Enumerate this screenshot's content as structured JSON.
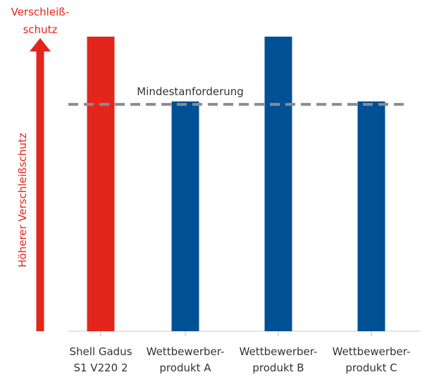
{
  "chart_data": {
    "type": "bar",
    "title": "",
    "xlabel": "",
    "ylabel": "Höherer Verschleißschutz",
    "y_axis_top_label": [
      "Verschleiß-",
      "schutz"
    ],
    "categories": [
      [
        "Shell Gadus",
        "S1 V220 2"
      ],
      [
        "Wettbewerber-",
        "produkt A"
      ],
      [
        "Wettbewerber-",
        "produkt B"
      ],
      [
        "Wettbewerber-",
        "produkt C"
      ]
    ],
    "values": [
      100,
      78,
      100,
      78
    ],
    "ylim": [
      0,
      100
    ],
    "reference_line": {
      "label": "Mindestanforderung",
      "value": 77,
      "style": "dashed",
      "color": "#8c8c8c"
    },
    "bar_colors": [
      "#e3261b",
      "#005096",
      "#005096",
      "#005096"
    ],
    "axis_arrow_color": "#e3261b",
    "grid": false,
    "legend": "none"
  }
}
